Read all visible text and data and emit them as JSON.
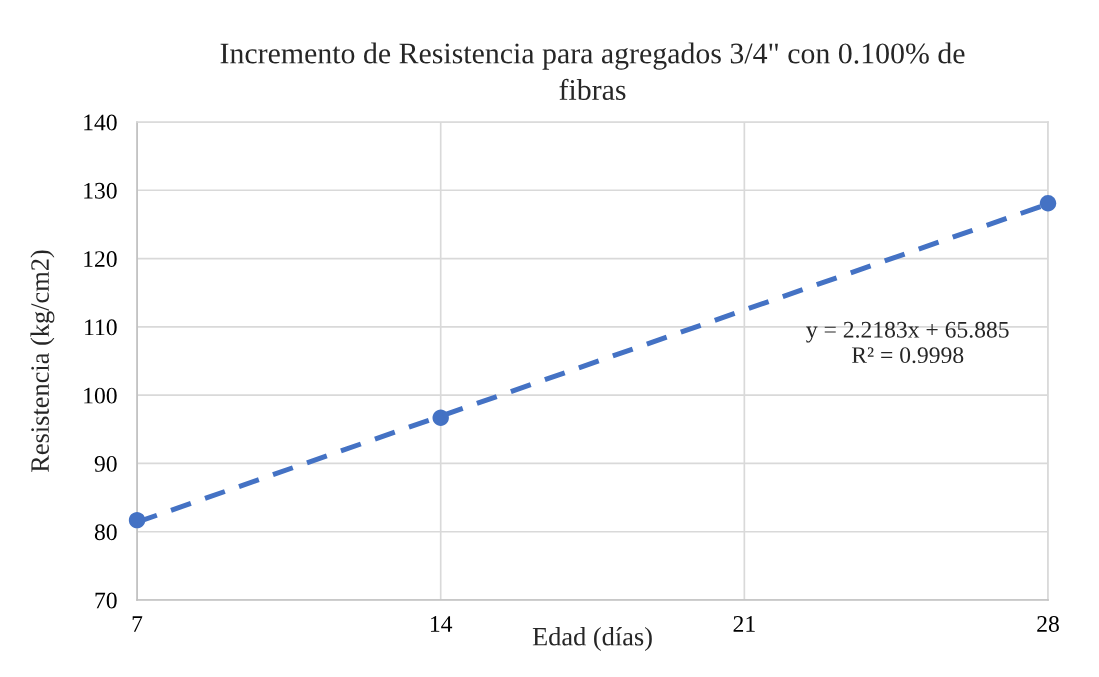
{
  "chart_data": {
    "type": "scatter",
    "title": "Incremento de Resistencia para agregados 3/4\" con 0.100% de\nfibras",
    "xlabel": "Edad (días)",
    "ylabel": "Resistencia (kg/cm2)",
    "x": [
      7,
      14,
      28
    ],
    "series": [
      {
        "color": "#4472c4",
        "marker": "circle",
        "values": [
          81.7,
          96.7,
          128.1
        ]
      },
      {
        "type": "line",
        "x": [
          7,
          28
        ],
        "color": "#4472c4",
        "line_style": "dashed",
        "marker": "none",
        "values": [
          81.4,
          128.0
        ]
      }
    ],
    "xlim": [
      7,
      28
    ],
    "xticks": [
      7,
      14,
      21,
      28
    ],
    "ylim": [
      70,
      140
    ],
    "yticks": [
      70,
      80,
      90,
      100,
      110,
      120,
      130,
      140
    ],
    "grid": true,
    "annotations": [
      "y = 2.2183x + 65.885",
      "R² = 0.9998"
    ]
  }
}
